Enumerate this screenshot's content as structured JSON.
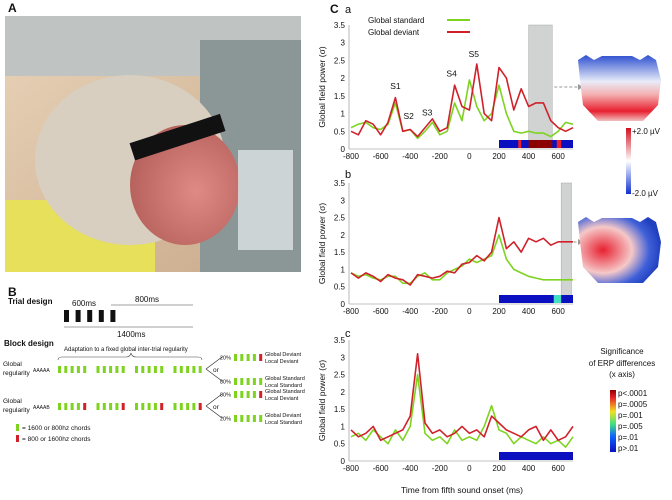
{
  "panel_labels": {
    "A": "A",
    "B": "B",
    "C": "C",
    "a": "a",
    "b": "b",
    "c": "c"
  },
  "panel_b": {
    "trial_title": "Trial design",
    "t600": "600ms",
    "t800": "800ms",
    "t1400": "1400ms",
    "block_title": "Block design",
    "adaptation": "Adaptation to a fixed global inter-trial regularity",
    "rows": [
      {
        "label1": "Global",
        "label2": "regularity",
        "seq": "AAAAA",
        "last_red": false,
        "outcomes": [
          {
            "pct": "20%",
            "red": true,
            "l1": "Global Deviant",
            "l2": "Local Deviant"
          },
          {
            "pct": "80%",
            "red": false,
            "l1": "Global Standard",
            "l2": "Local Standard"
          }
        ]
      },
      {
        "label1": "Global",
        "label2": "regularity",
        "seq": "AAAAB",
        "last_red": true,
        "outcomes": [
          {
            "pct": "80%",
            "red": true,
            "l1": "Global Standard",
            "l2": "Local Deviant"
          },
          {
            "pct": "20%",
            "red": false,
            "l1": "Global Deviant",
            "l2": "Local Standard"
          }
        ]
      }
    ],
    "or": "or",
    "legend_green": "= 1600 or 800hz chords",
    "legend_red": "= 800 or 1600hz chords",
    "colors": {
      "green": "#7ed321",
      "red": "#d0212b"
    }
  },
  "topo": {
    "plus": "+2.0 µV",
    "minus": "-2.0 µV"
  },
  "significance": {
    "title1": "Significance",
    "title2": "of ERP differences",
    "title3": "(x axis)",
    "levels": [
      "p<.0001",
      "p=.0005",
      "p=.001",
      "p=.005",
      "p=.01",
      "p>.01"
    ]
  },
  "chart_data": [
    {
      "type": "line",
      "panel": "a",
      "ylabel": "Global field power (σ)",
      "xlabel": "Time from fifth sound onset (ms)",
      "xlim": [
        -800,
        700
      ],
      "ylim": [
        0,
        3.5
      ],
      "xticks": [
        -800,
        -600,
        -400,
        -200,
        0,
        200,
        400,
        600
      ],
      "yticks": [
        "0",
        "0.5",
        "1",
        "1.5",
        "2",
        "2.5",
        "3",
        "3.5"
      ],
      "legend": {
        "placement": "top-left",
        "entries": [
          "Global standard",
          "Global deviant"
        ]
      },
      "x": [
        -800,
        -750,
        -700,
        -650,
        -600,
        -550,
        -500,
        -450,
        -400,
        -350,
        -300,
        -250,
        -200,
        -150,
        -100,
        -50,
        0,
        50,
        100,
        150,
        200,
        250,
        300,
        350,
        400,
        450,
        500,
        550,
        600,
        650,
        700
      ],
      "series": [
        {
          "name": "Global standard",
          "color": "#7ed321",
          "values": [
            0.6,
            0.7,
            0.75,
            0.6,
            0.55,
            0.7,
            1.3,
            0.5,
            0.55,
            0.3,
            0.5,
            0.75,
            0.4,
            0.5,
            1.3,
            0.8,
            1.95,
            1.2,
            0.8,
            1.0,
            1.8,
            1.0,
            0.5,
            0.45,
            0.5,
            0.45,
            0.45,
            0.35,
            0.5,
            0.75,
            0.7
          ]
        },
        {
          "name": "Global deviant",
          "color": "#d0212b",
          "values": [
            0.5,
            0.4,
            0.8,
            0.7,
            0.4,
            0.75,
            1.45,
            0.5,
            0.55,
            0.35,
            0.6,
            0.85,
            0.5,
            0.6,
            1.8,
            1.2,
            1.1,
            2.4,
            1.0,
            0.8,
            2.3,
            2.0,
            1.1,
            1.7,
            1.2,
            1.3,
            1.3,
            0.8,
            0.6,
            0.5,
            0.6
          ]
        }
      ],
      "annotations": [
        {
          "text": "S1",
          "x": -500,
          "y": 1.7
        },
        {
          "text": "S2",
          "x": -410,
          "y": 0.85
        },
        {
          "text": "S3",
          "x": -285,
          "y": 0.95
        },
        {
          "text": "S4",
          "x": -120,
          "y": 2.05
        },
        {
          "text": "S5",
          "x": 30,
          "y": 2.6
        }
      ],
      "shaded_window": [
        400,
        560
      ],
      "significance_segments": [
        {
          "from": 200,
          "to": 700,
          "level": "p>.01"
        },
        {
          "from": 330,
          "to": 350,
          "level": "p=.0005"
        },
        {
          "from": 400,
          "to": 560,
          "level": "p<.0001"
        },
        {
          "from": 590,
          "to": 620,
          "level": "p=.0005"
        }
      ]
    },
    {
      "type": "line",
      "panel": "b",
      "ylabel": "Global field power (σ)",
      "xlim": [
        -800,
        700
      ],
      "ylim": [
        0,
        3.5
      ],
      "xticks": [
        -800,
        -600,
        -400,
        -200,
        0,
        200,
        400,
        600
      ],
      "yticks": [
        "0",
        "0.5",
        "1",
        "1.5",
        "2",
        "2.5",
        "3",
        "3.5"
      ],
      "x": [
        -800,
        -750,
        -700,
        -650,
        -600,
        -550,
        -500,
        -450,
        -400,
        -350,
        -300,
        -250,
        -200,
        -150,
        -100,
        -50,
        0,
        50,
        100,
        150,
        200,
        250,
        300,
        350,
        400,
        450,
        500,
        550,
        600,
        650,
        700
      ],
      "series": [
        {
          "name": "Global standard",
          "color": "#7ed321",
          "values": [
            0.9,
            0.8,
            0.85,
            0.75,
            0.7,
            0.8,
            0.8,
            0.6,
            0.6,
            0.8,
            0.9,
            0.7,
            0.7,
            0.9,
            1.0,
            1.1,
            1.3,
            1.2,
            1.3,
            1.4,
            2.0,
            1.3,
            1.0,
            0.9,
            0.8,
            0.75,
            0.7,
            0.7,
            0.7,
            0.7,
            0.7
          ]
        },
        {
          "name": "Global deviant",
          "color": "#d0212b",
          "values": [
            0.9,
            0.75,
            0.9,
            0.8,
            0.65,
            0.85,
            0.75,
            0.7,
            0.55,
            0.85,
            0.8,
            0.75,
            0.8,
            0.95,
            0.9,
            1.15,
            1.2,
            1.4,
            1.25,
            1.5,
            2.5,
            1.6,
            1.8,
            1.5,
            1.9,
            1.8,
            1.9,
            1.7,
            1.8,
            1.8,
            1.8
          ]
        }
      ],
      "shaded_window": [
        620,
        690
      ],
      "significance_segments": [
        {
          "from": 200,
          "to": 700,
          "level": "p>.01"
        },
        {
          "from": 570,
          "to": 620,
          "level": "p=.005"
        }
      ]
    },
    {
      "type": "line",
      "panel": "c",
      "ylabel": "Global field power (σ)",
      "xlim": [
        -800,
        700
      ],
      "ylim": [
        0,
        3.5
      ],
      "xticks": [
        -800,
        -600,
        -400,
        -200,
        0,
        200,
        400,
        600
      ],
      "yticks": [
        "0",
        "0.5",
        "1",
        "1.5",
        "2",
        "2.5",
        "3",
        "3.5"
      ],
      "x": [
        -800,
        -750,
        -700,
        -650,
        -600,
        -550,
        -500,
        -450,
        -400,
        -350,
        -300,
        -250,
        -200,
        -150,
        -100,
        -50,
        0,
        50,
        100,
        150,
        200,
        250,
        300,
        350,
        400,
        450,
        500,
        550,
        600,
        650,
        700
      ],
      "series": [
        {
          "name": "Global standard",
          "color": "#7ed321",
          "values": [
            0.7,
            0.8,
            0.6,
            0.9,
            0.7,
            0.5,
            0.9,
            0.6,
            1.0,
            2.5,
            0.8,
            0.6,
            0.7,
            0.5,
            0.9,
            0.6,
            0.7,
            0.6,
            1.0,
            1.6,
            0.9,
            0.8,
            0.5,
            0.7,
            0.6,
            0.5,
            0.7,
            0.5,
            0.6,
            0.4,
            0.7
          ]
        },
        {
          "name": "Global deviant",
          "color": "#d0212b",
          "values": [
            0.9,
            0.7,
            0.8,
            1.0,
            0.6,
            0.7,
            0.8,
            0.9,
            1.3,
            3.1,
            1.1,
            0.8,
            0.9,
            0.7,
            0.8,
            1.0,
            0.8,
            0.9,
            0.7,
            1.3,
            1.1,
            0.9,
            0.8,
            0.7,
            0.9,
            1.0,
            0.6,
            0.9,
            0.6,
            0.7,
            1.0
          ]
        }
      ],
      "significance_segments": [
        {
          "from": 200,
          "to": 700,
          "level": "p>.01"
        }
      ]
    }
  ],
  "xaxis_title": "Time from fifth sound onset (ms)",
  "level_colors": {
    "p<.0001": "#8b0000",
    "p=.0005": "#e8202a",
    "p=.001": "#f0e020",
    "p=.005": "#40e0c0",
    "p=.01": "#1060ff",
    "p>.01": "#0a10c0"
  }
}
